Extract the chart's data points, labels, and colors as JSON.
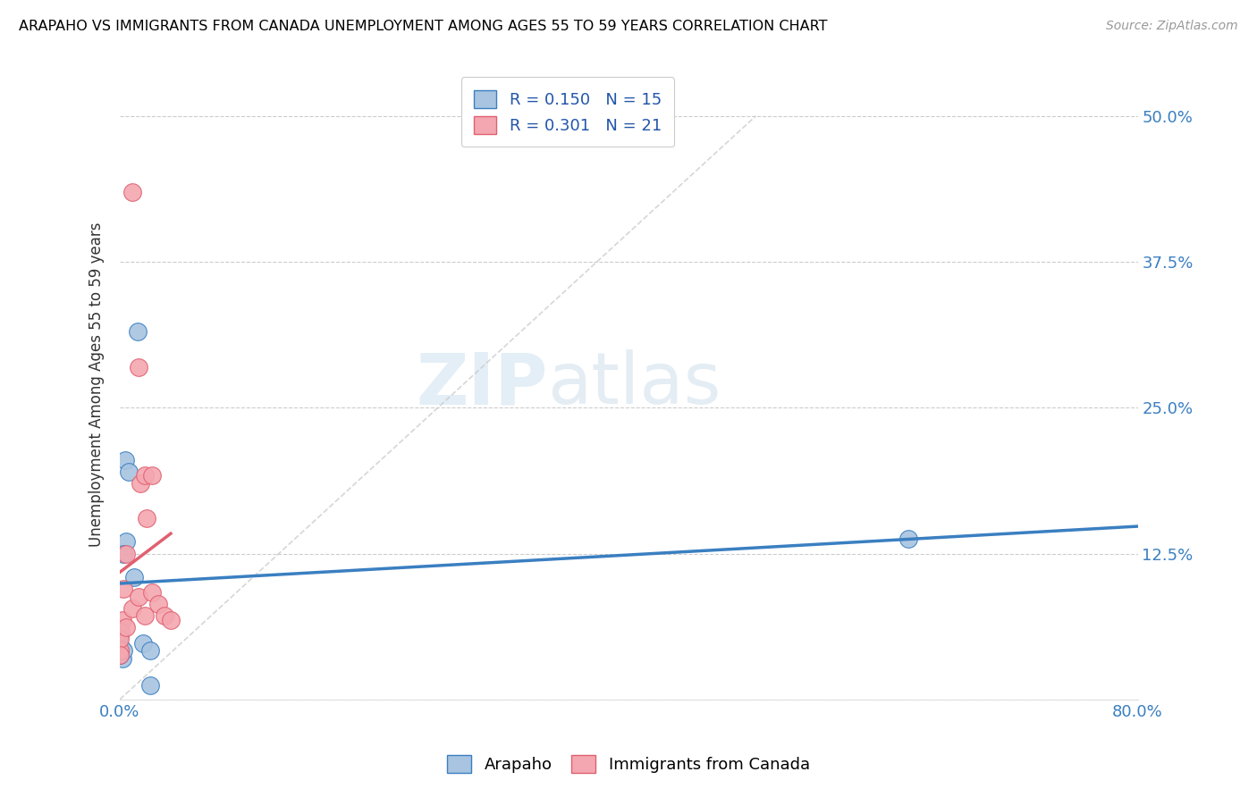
{
  "title": "ARAPAHO VS IMMIGRANTS FROM CANADA UNEMPLOYMENT AMONG AGES 55 TO 59 YEARS CORRELATION CHART",
  "source": "Source: ZipAtlas.com",
  "ylabel": "Unemployment Among Ages 55 to 59 years",
  "xlim": [
    0.0,
    0.8
  ],
  "ylim": [
    0.0,
    0.54
  ],
  "yticks": [
    0.0,
    0.125,
    0.25,
    0.375,
    0.5
  ],
  "ytick_labels": [
    "",
    "12.5%",
    "25.0%",
    "37.5%",
    "50.0%"
  ],
  "xtick_positions": [
    0.0,
    0.1,
    0.2,
    0.3,
    0.4,
    0.5,
    0.6,
    0.7,
    0.8
  ],
  "xtick_labels": [
    "0.0%",
    "",
    "",
    "",
    "",
    "",
    "",
    "",
    "80.0%"
  ],
  "watermark_zip": "ZIP",
  "watermark_atlas": "atlas",
  "legend_label1": "R = 0.150   N = 15",
  "legend_label2": "R = 0.301   N = 21",
  "series1_label": "Arapaho",
  "series2_label": "Immigrants from Canada",
  "arapaho_color": "#a8c4e0",
  "canada_color": "#f4a7b0",
  "arapaho_line_color": "#3a7fc1",
  "canada_line_color": "#e06070",
  "diagonal_color": "#cccccc",
  "arapaho_x": [
    0.004,
    0.007,
    0.011,
    0.014,
    0.005,
    0.003,
    0.002,
    0.001,
    0.0,
    0.0,
    0.003,
    0.018,
    0.024,
    0.024,
    0.62
  ],
  "arapaho_y": [
    0.205,
    0.195,
    0.105,
    0.315,
    0.135,
    0.125,
    0.035,
    0.045,
    0.055,
    0.038,
    0.042,
    0.048,
    0.042,
    0.012,
    0.138
  ],
  "canada_x": [
    0.01,
    0.015,
    0.016,
    0.02,
    0.025,
    0.021,
    0.005,
    0.003,
    0.002,
    0.001,
    0.0,
    0.0,
    0.0,
    0.005,
    0.01,
    0.015,
    0.02,
    0.025,
    0.03,
    0.035,
    0.04
  ],
  "canada_y": [
    0.435,
    0.285,
    0.185,
    0.192,
    0.192,
    0.155,
    0.125,
    0.095,
    0.068,
    0.058,
    0.042,
    0.052,
    0.038,
    0.062,
    0.078,
    0.088,
    0.072,
    0.092,
    0.082,
    0.072,
    0.068
  ]
}
